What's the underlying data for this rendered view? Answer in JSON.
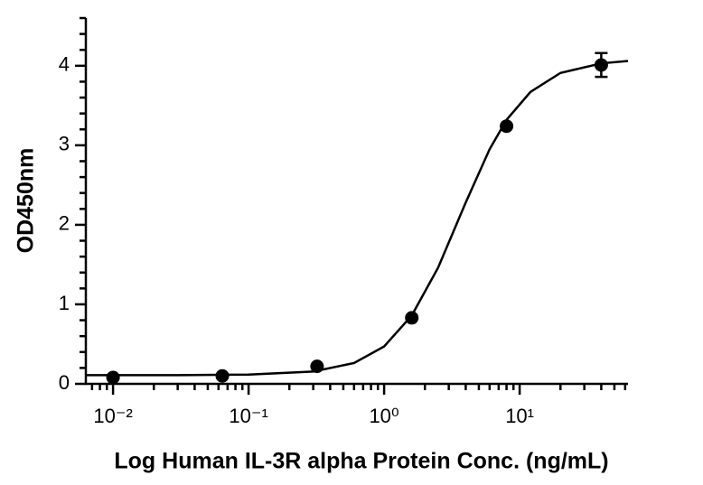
{
  "chart_data": {
    "type": "scatter",
    "xlabel": "Log Human IL-3R alpha Protein Conc. (ng/mL)",
    "ylabel": "OD450nm",
    "xscale": "log",
    "xlim": [
      0.0063,
      63
    ],
    "ylim": [
      0,
      4.6
    ],
    "xticks": [
      {
        "value": 0.01,
        "label": "10⁻²"
      },
      {
        "value": 0.1,
        "label": "10⁻¹"
      },
      {
        "value": 1,
        "label": "10⁰"
      },
      {
        "value": 10,
        "label": "10¹"
      }
    ],
    "xminorticks": [
      0.007,
      0.008,
      0.009,
      0.02,
      0.03,
      0.04,
      0.05,
      0.06,
      0.07,
      0.08,
      0.09,
      0.2,
      0.3,
      0.4,
      0.5,
      0.6,
      0.7,
      0.8,
      0.9,
      2,
      3,
      4,
      5,
      6,
      7,
      8,
      9,
      20,
      30,
      40,
      50,
      60
    ],
    "yticks": [
      0,
      1,
      2,
      3,
      4
    ],
    "yminorticks": [
      0.2,
      0.4,
      0.6,
      0.8,
      1.2,
      1.4,
      1.6,
      1.8,
      2.2,
      2.4,
      2.6,
      2.8,
      3.2,
      3.4,
      3.6,
      3.8,
      4.2,
      4.4,
      4.6
    ],
    "series": [
      {
        "color": "#000000",
        "x": [
          0.01,
          0.064,
          0.32,
          1.6,
          8,
          40
        ],
        "values": [
          0.08,
          0.1,
          0.22,
          0.83,
          3.24,
          4.01
        ],
        "errors": [
          null,
          null,
          null,
          null,
          null,
          0.15
        ]
      },
      {
        "color": "#000000",
        "kind": "fit",
        "x": [
          0.0063,
          0.01,
          0.03,
          0.1,
          0.3,
          0.6,
          1,
          1.6,
          2.5,
          4,
          6,
          8,
          12,
          20,
          40,
          63
        ],
        "values": [
          0.11,
          0.11,
          0.11,
          0.116,
          0.155,
          0.262,
          0.47,
          0.86,
          1.46,
          2.28,
          2.95,
          3.32,
          3.67,
          3.91,
          4.03,
          4.06
        ]
      }
    ]
  }
}
